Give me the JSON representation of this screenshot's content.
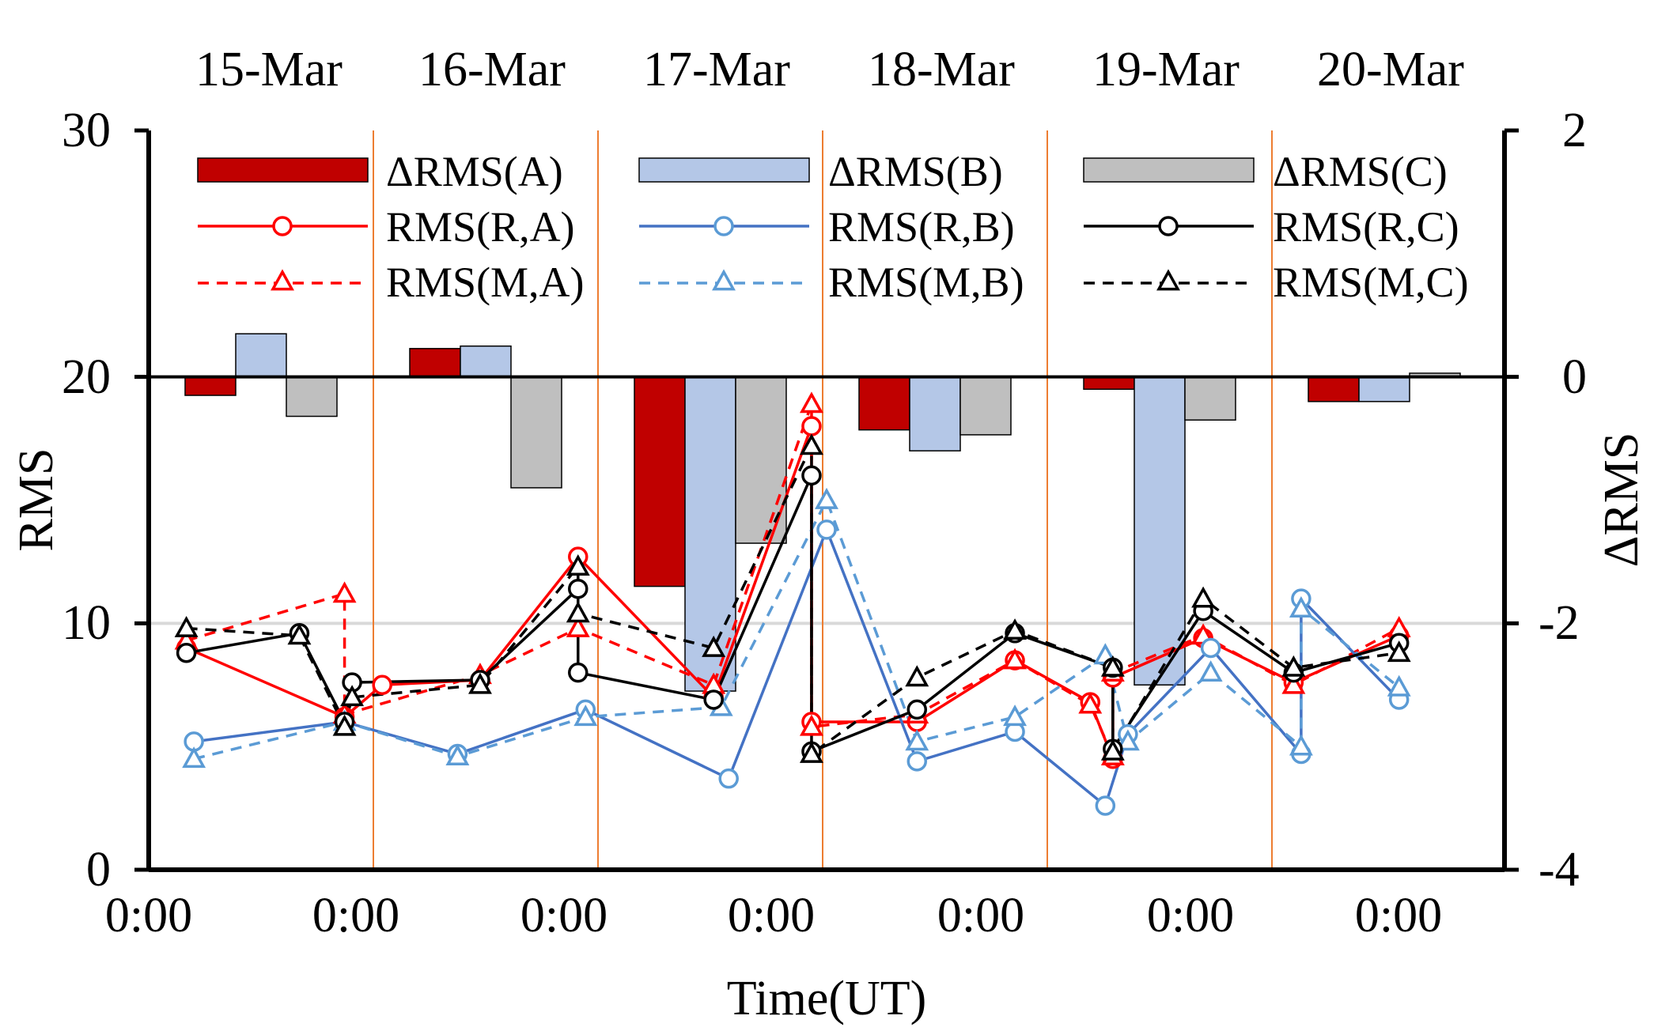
{
  "chart_data": {
    "type": "bar+line",
    "title": "",
    "xlabel": "Time(UT)",
    "ylabel_left": "RMS",
    "ylabel_right": "ΔRMS",
    "ylim_left": [
      0,
      30
    ],
    "ylim_right": [
      -4,
      2
    ],
    "left_ticks": [
      "0",
      "10",
      "20",
      "30"
    ],
    "right_ticks": [
      "-4",
      "-2",
      "0",
      "2"
    ],
    "x_ticks": [
      "0:00",
      "0:00",
      "0:00",
      "0:00",
      "0:00",
      "0:00",
      "0:00"
    ],
    "dates": [
      "15-Mar",
      "16-Mar",
      "17-Mar",
      "18-Mar",
      "19-Mar",
      "20-Mar"
    ],
    "colors": {
      "A": "#c00000",
      "A_line": "#ff0000",
      "B_bar": "#b4c7e7",
      "B_line": "#4472c4",
      "B_dash": "#5b9bd5",
      "C_bar": "#bfbfbf",
      "C_line": "#000000",
      "day_separator": "#ed7d31",
      "ref_line": "#d9d9d9"
    },
    "bars": {
      "A": [
        -0.15,
        0.23,
        -1.7,
        -0.43,
        -0.1,
        -0.2
      ],
      "B": [
        0.35,
        0.25,
        -2.55,
        -0.6,
        -2.5,
        -0.2
      ],
      "C": [
        -0.32,
        -0.9,
        -1.35,
        -0.47,
        -0.35,
        0.03
      ]
    },
    "series": [
      {
        "name": "RMS(R,A)",
        "points": [
          [
            0.25,
            9.0
          ],
          [
            1.3,
            6.2
          ],
          [
            1.55,
            7.5
          ],
          [
            2.2,
            7.7
          ],
          [
            2.85,
            12.7
          ],
          [
            3.75,
            7.0
          ],
          [
            4.4,
            18.0
          ],
          [
            4.4,
            6.0
          ],
          [
            5.1,
            6.0
          ],
          [
            5.75,
            8.5
          ],
          [
            6.25,
            6.8
          ],
          [
            6.4,
            4.5
          ],
          [
            6.4,
            7.8
          ],
          [
            7.0,
            9.4
          ],
          [
            7.6,
            7.6
          ],
          [
            8.3,
            9.5
          ]
        ]
      },
      {
        "name": "RMS(M,A)",
        "points": [
          [
            0.25,
            9.3
          ],
          [
            1.3,
            11.2
          ],
          [
            1.3,
            6.3
          ],
          [
            2.2,
            7.9
          ],
          [
            2.85,
            9.8
          ],
          [
            3.75,
            7.5
          ],
          [
            4.4,
            18.9
          ],
          [
            4.4,
            5.8
          ],
          [
            5.1,
            6.3
          ],
          [
            5.75,
            8.5
          ],
          [
            6.25,
            6.7
          ],
          [
            6.4,
            4.6
          ],
          [
            6.4,
            8.0
          ],
          [
            7.0,
            9.5
          ],
          [
            7.6,
            7.5
          ],
          [
            8.3,
            9.8
          ]
        ]
      },
      {
        "name": "RMS(R,B)",
        "points": [
          [
            0.3,
            5.2
          ],
          [
            1.3,
            6.0
          ],
          [
            2.05,
            4.7
          ],
          [
            2.9,
            6.5
          ],
          [
            3.85,
            3.7
          ],
          [
            4.5,
            13.8
          ],
          [
            5.1,
            4.4
          ],
          [
            5.75,
            5.6
          ],
          [
            6.35,
            2.6
          ],
          [
            6.5,
            5.5
          ],
          [
            7.05,
            9.0
          ],
          [
            7.65,
            4.7
          ],
          [
            7.65,
            11.0
          ],
          [
            8.3,
            6.9
          ]
        ]
      },
      {
        "name": "RMS(M,B)",
        "points": [
          [
            0.3,
            4.5
          ],
          [
            1.3,
            6.0
          ],
          [
            2.05,
            4.6
          ],
          [
            2.9,
            6.2
          ],
          [
            3.8,
            6.6
          ],
          [
            4.5,
            15.0
          ],
          [
            5.1,
            5.2
          ],
          [
            5.75,
            6.2
          ],
          [
            6.35,
            8.7
          ],
          [
            6.5,
            5.2
          ],
          [
            7.05,
            8.0
          ],
          [
            7.65,
            5.0
          ],
          [
            7.65,
            10.6
          ],
          [
            8.3,
            7.4
          ]
        ]
      },
      {
        "name": "RMS(R,C)",
        "points": [
          [
            0.25,
            8.8
          ],
          [
            1.0,
            9.6
          ],
          [
            1.3,
            6.0
          ],
          [
            1.35,
            7.6
          ],
          [
            2.2,
            7.7
          ],
          [
            2.85,
            11.4
          ],
          [
            2.85,
            8.0
          ],
          [
            3.75,
            6.9
          ],
          [
            4.4,
            16.0
          ],
          [
            4.4,
            4.8
          ],
          [
            5.1,
            6.5
          ],
          [
            5.75,
            9.6
          ],
          [
            6.4,
            8.2
          ],
          [
            6.4,
            4.9
          ],
          [
            7.0,
            10.5
          ],
          [
            7.6,
            8.0
          ],
          [
            8.3,
            9.2
          ]
        ]
      },
      {
        "name": "RMS(M,C)",
        "points": [
          [
            0.25,
            9.8
          ],
          [
            1.0,
            9.5
          ],
          [
            1.3,
            5.8
          ],
          [
            1.35,
            7.0
          ],
          [
            2.2,
            7.5
          ],
          [
            2.85,
            12.3
          ],
          [
            2.85,
            10.4
          ],
          [
            3.75,
            9.0
          ],
          [
            4.4,
            17.2
          ],
          [
            4.4,
            4.7
          ],
          [
            5.1,
            7.8
          ],
          [
            5.75,
            9.7
          ],
          [
            6.4,
            8.2
          ],
          [
            6.4,
            4.8
          ],
          [
            7.0,
            11.0
          ],
          [
            7.6,
            8.2
          ],
          [
            8.3,
            8.8
          ]
        ]
      }
    ],
    "legend": {
      "placement": "top",
      "bar_entries": [
        "ΔRMS(A)",
        "ΔRMS(B)",
        "ΔRMS(C)"
      ],
      "line_entries": [
        "RMS(R,A)",
        "RMS(R,B)",
        "RMS(R,C)"
      ],
      "dash_entries": [
        "RMS(M,A)",
        "RMS(M,B)",
        "RMS(M,C)"
      ]
    }
  }
}
